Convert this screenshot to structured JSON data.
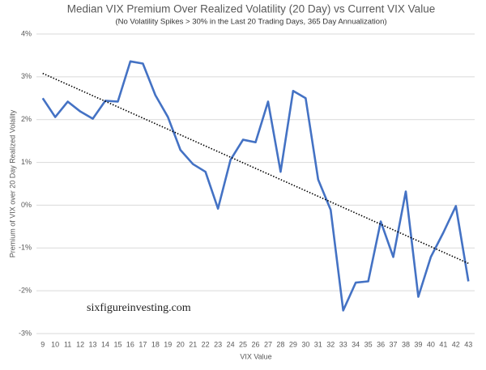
{
  "chart_data": {
    "type": "line",
    "title": "Median VIX Premium Over Realized Volatility (20 Day) vs Current VIX Value",
    "subtitle": "(No Volatility Spikes > 30% in the Last 20 Trading Days, 365 Day Annualization)",
    "x_label": "VIX Value",
    "y_label": "Premium of VIX over 20 Day Realized Volality",
    "annotation": "sixfigureinvesting.com",
    "categories": [
      9,
      10,
      11,
      12,
      13,
      14,
      15,
      16,
      17,
      18,
      19,
      20,
      21,
      22,
      23,
      24,
      25,
      26,
      27,
      28,
      29,
      30,
      31,
      32,
      33,
      34,
      35,
      36,
      37,
      38,
      39,
      40,
      41,
      42,
      43
    ],
    "series": [
      {
        "color": "#4472c4",
        "values": [
          2.5,
          2.06,
          2.42,
          2.19,
          2.02,
          2.44,
          2.42,
          3.36,
          3.31,
          2.57,
          2.06,
          1.29,
          0.96,
          0.78,
          -0.08,
          1.06,
          1.53,
          1.47,
          2.42,
          0.78,
          2.67,
          2.5,
          0.6,
          -0.11,
          -2.46,
          -1.81,
          -1.78,
          -0.38,
          -1.21,
          0.32,
          -2.14,
          -1.21,
          -0.64,
          -0.02,
          -1.78
        ]
      }
    ],
    "trendline": {
      "color": "#000000",
      "values": [
        3.08,
        -1.36
      ]
    },
    "ylim": [
      -3,
      4
    ],
    "yticks": [
      {
        "value": -3,
        "label": "-3%"
      },
      {
        "value": -2,
        "label": "-2%"
      },
      {
        "value": -1,
        "label": "-1%"
      },
      {
        "value": 0,
        "label": "0%"
      },
      {
        "value": 1,
        "label": "1%"
      },
      {
        "value": 2,
        "label": "2%"
      },
      {
        "value": 3,
        "label": "3%"
      },
      {
        "value": 4,
        "label": "4%"
      }
    ],
    "grid": true
  }
}
